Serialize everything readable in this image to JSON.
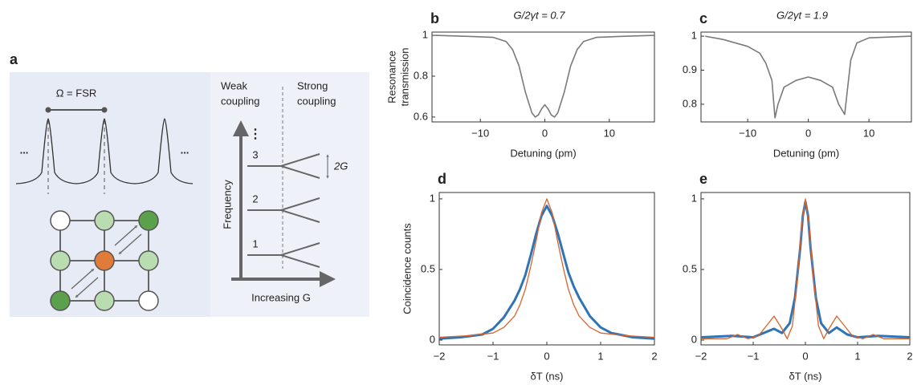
{
  "panel_a": {
    "label": "a",
    "fsr": "Ω = FSR",
    "dots_left": "...",
    "dots_right": "...",
    "weak": [
      "Weak",
      "coupling"
    ],
    "strong": [
      "Strong",
      "coupling"
    ],
    "levels": [
      "3",
      "2",
      "1"
    ],
    "vdots": "⋮",
    "splitting": "2G",
    "y_axis": "Frequency",
    "x_axis": "Increasing G"
  },
  "chart_data": [
    {
      "type": "line",
      "label": "b",
      "title": "G/2γt = 0.7",
      "xlabel": "Detuning (pm)",
      "ylabel": [
        "Resonance",
        "transmission"
      ],
      "xlim": [
        -17.5,
        17
      ],
      "ylim": [
        0.576,
        1.016
      ],
      "xticks": [
        {
          "value": -10,
          "label": "−10"
        },
        0,
        10
      ],
      "yticks": [
        0.6,
        0.8,
        1
      ],
      "series": [
        {
          "color": "#7a7a7a",
          "x": [
            -17,
            -12,
            -8,
            -6,
            -5,
            -4,
            -3,
            -2,
            -1.5,
            -1,
            -0.5,
            0,
            0.5,
            1,
            1.5,
            2,
            3,
            4,
            5,
            6,
            8,
            12,
            17
          ],
          "values": [
            1,
            0.995,
            0.99,
            0.97,
            0.93,
            0.85,
            0.72,
            0.62,
            0.6,
            0.61,
            0.64,
            0.66,
            0.64,
            0.61,
            0.6,
            0.62,
            0.72,
            0.85,
            0.93,
            0.97,
            0.99,
            0.995,
            1
          ]
        }
      ]
    },
    {
      "type": "line",
      "label": "c",
      "title": "G/2γt = 1.9",
      "xlabel": "Detuning (pm)",
      "xlim": [
        -17.7,
        17
      ],
      "ylim": [
        0.748,
        1.012
      ],
      "xticks": [
        {
          "value": -10,
          "label": "−10"
        },
        0,
        10
      ],
      "yticks": [
        0.8,
        0.9,
        1
      ],
      "series": [
        {
          "color": "#7a7a7a",
          "x": [
            -17,
            -14,
            -10,
            -8,
            -7,
            -6,
            -5.5,
            -5,
            -4,
            -2,
            0,
            2,
            4,
            5,
            6,
            6.5,
            7,
            8,
            10,
            17
          ],
          "values": [
            1,
            0.99,
            0.97,
            0.95,
            0.92,
            0.87,
            0.76,
            0.8,
            0.85,
            0.87,
            0.88,
            0.87,
            0.85,
            0.8,
            0.77,
            0.85,
            0.93,
            0.98,
            0.995,
            1
          ]
        }
      ]
    },
    {
      "type": "line",
      "label": "d",
      "xlabel": "δT (ns)",
      "ylabel": [
        "Coincidence counts"
      ],
      "xlim": [
        -2,
        2
      ],
      "ylim": [
        -0.034,
        1.045
      ],
      "xticks": [
        {
          "value": -2,
          "label": "−2"
        },
        {
          "value": -1,
          "label": "−1"
        },
        0,
        1,
        2
      ],
      "yticks": [
        0,
        0.5,
        1
      ],
      "series": [
        {
          "color": "#2f74b5",
          "width": 3,
          "x": [
            -2,
            -1.6,
            -1.2,
            -1,
            -0.8,
            -0.6,
            -0.5,
            -0.4,
            -0.3,
            -0.2,
            -0.1,
            0,
            0.1,
            0.2,
            0.3,
            0.4,
            0.5,
            0.6,
            0.8,
            1,
            1.2,
            1.6,
            2
          ],
          "values": [
            0.01,
            0.02,
            0.04,
            0.08,
            0.16,
            0.28,
            0.36,
            0.46,
            0.6,
            0.75,
            0.88,
            0.95,
            0.88,
            0.76,
            0.62,
            0.48,
            0.38,
            0.3,
            0.17,
            0.09,
            0.05,
            0.02,
            0.01
          ]
        },
        {
          "color": "#d9622b",
          "width": 1.3,
          "x": [
            -2,
            -1.5,
            -1,
            -0.8,
            -0.6,
            -0.5,
            -0.4,
            -0.3,
            -0.2,
            -0.1,
            0,
            0.1,
            0.2,
            0.3,
            0.4,
            0.5,
            0.6,
            0.8,
            1,
            1.5,
            2
          ],
          "values": [
            0.02,
            0.03,
            0.05,
            0.09,
            0.17,
            0.25,
            0.36,
            0.52,
            0.7,
            0.9,
            1,
            0.9,
            0.7,
            0.52,
            0.36,
            0.25,
            0.17,
            0.09,
            0.05,
            0.03,
            0.02
          ]
        }
      ]
    },
    {
      "type": "line",
      "label": "e",
      "xlabel": "δT (ns)",
      "xlim": [
        -2,
        2
      ],
      "ylim": [
        -0.034,
        1.045
      ],
      "xticks": [
        {
          "value": -2,
          "label": "−2"
        },
        {
          "value": -1,
          "label": "−1"
        },
        0,
        1,
        2
      ],
      "yticks": [
        0,
        0.5,
        1
      ],
      "series": [
        {
          "color": "#2f74b5",
          "width": 3,
          "x": [
            -2,
            -1.4,
            -1,
            -0.8,
            -0.6,
            -0.45,
            -0.3,
            -0.2,
            -0.1,
            -0.05,
            0,
            0.05,
            0.1,
            0.2,
            0.3,
            0.45,
            0.6,
            0.8,
            1,
            1.4,
            2
          ],
          "values": [
            0.02,
            0.03,
            0.02,
            0.05,
            0.08,
            0.05,
            0.12,
            0.3,
            0.65,
            0.88,
            0.98,
            0.88,
            0.65,
            0.3,
            0.12,
            0.05,
            0.09,
            0.04,
            0.02,
            0.03,
            0.02
          ]
        },
        {
          "color": "#d9622b",
          "width": 1.3,
          "x": [
            -2,
            -1.5,
            -1.3,
            -1.1,
            -0.9,
            -0.75,
            -0.6,
            -0.45,
            -0.35,
            -0.25,
            -0.15,
            -0.07,
            0,
            0.07,
            0.15,
            0.25,
            0.35,
            0.45,
            0.6,
            0.75,
            0.9,
            1.1,
            1.3,
            1.5,
            2
          ],
          "values": [
            0.01,
            0.01,
            0.04,
            0.01,
            0.03,
            0.1,
            0.17,
            0.08,
            0.01,
            0.1,
            0.45,
            0.82,
            1,
            0.82,
            0.45,
            0.1,
            0.01,
            0.08,
            0.17,
            0.1,
            0.03,
            0.01,
            0.04,
            0.01,
            0.01
          ]
        }
      ]
    }
  ]
}
